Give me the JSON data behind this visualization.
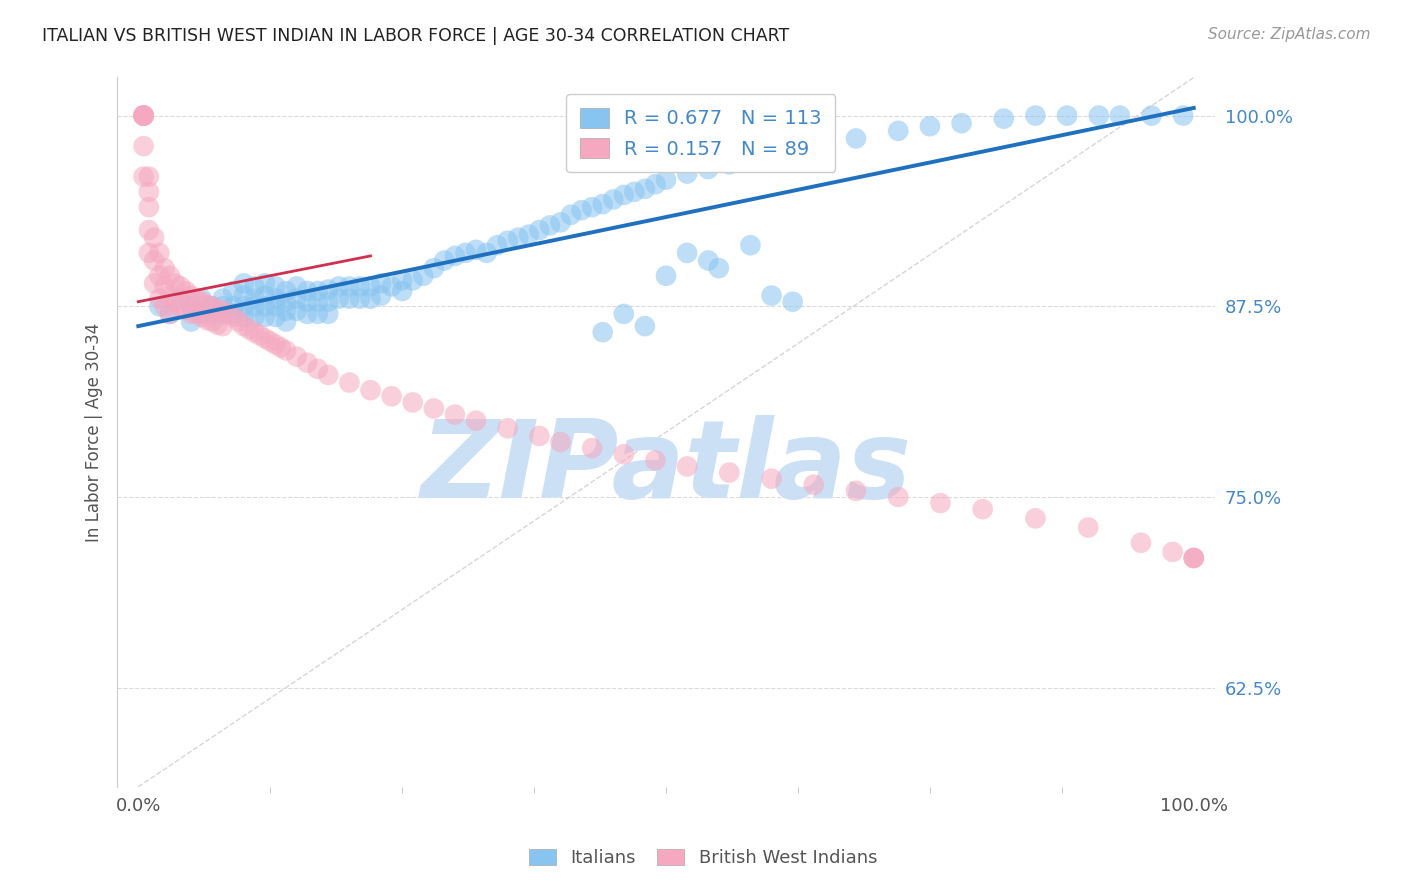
{
  "title": "ITALIAN VS BRITISH WEST INDIAN IN LABOR FORCE | AGE 30-34 CORRELATION CHART",
  "source": "Source: ZipAtlas.com",
  "ylabel": "In Labor Force | Age 30-34",
  "xlim": [
    -0.02,
    1.02
  ],
  "ylim": [
    0.56,
    1.025
  ],
  "yticks": [
    0.625,
    0.75,
    0.875,
    1.0
  ],
  "ytick_labels": [
    "62.5%",
    "75.0%",
    "87.5%",
    "100.0%"
  ],
  "xtick_labels": [
    "0.0%",
    "100.0%"
  ],
  "blue_R": 0.677,
  "blue_N": 113,
  "pink_R": 0.157,
  "pink_N": 89,
  "blue_color": "#88c4f0",
  "pink_color": "#f5a8c0",
  "trend_blue": "#2070c0",
  "trend_pink": "#d03050",
  "diagonal_color": "#cccccc",
  "grid_color": "#d8d8d8",
  "title_color": "#222222",
  "source_color": "#999999",
  "label_color": "#555555",
  "tick_color": "#4488cc",
  "watermark_color": "#cce0f5",
  "blue_scatter_x": [
    0.02,
    0.03,
    0.04,
    0.05,
    0.05,
    0.06,
    0.06,
    0.07,
    0.07,
    0.08,
    0.08,
    0.08,
    0.09,
    0.09,
    0.09,
    0.1,
    0.1,
    0.1,
    0.1,
    0.11,
    0.11,
    0.11,
    0.11,
    0.12,
    0.12,
    0.12,
    0.12,
    0.13,
    0.13,
    0.13,
    0.13,
    0.14,
    0.14,
    0.14,
    0.14,
    0.15,
    0.15,
    0.15,
    0.16,
    0.16,
    0.16,
    0.17,
    0.17,
    0.17,
    0.18,
    0.18,
    0.18,
    0.19,
    0.19,
    0.2,
    0.2,
    0.21,
    0.21,
    0.22,
    0.22,
    0.23,
    0.23,
    0.24,
    0.25,
    0.25,
    0.26,
    0.27,
    0.28,
    0.29,
    0.3,
    0.31,
    0.32,
    0.33,
    0.34,
    0.35,
    0.36,
    0.37,
    0.38,
    0.39,
    0.4,
    0.41,
    0.42,
    0.43,
    0.44,
    0.45,
    0.46,
    0.47,
    0.48,
    0.49,
    0.5,
    0.52,
    0.54,
    0.56,
    0.58,
    0.6,
    0.63,
    0.65,
    0.68,
    0.72,
    0.75,
    0.78,
    0.82,
    0.85,
    0.88,
    0.91,
    0.93,
    0.96,
    0.99,
    0.48,
    0.62,
    0.55,
    0.5,
    0.52,
    0.54,
    0.58,
    0.44,
    0.46,
    0.6
  ],
  "blue_scatter_y": [
    0.875,
    0.87,
    0.88,
    0.875,
    0.865,
    0.87,
    0.88,
    0.875,
    0.87,
    0.88,
    0.875,
    0.87,
    0.885,
    0.875,
    0.87,
    0.89,
    0.882,
    0.875,
    0.868,
    0.888,
    0.88,
    0.875,
    0.868,
    0.89,
    0.882,
    0.875,
    0.868,
    0.888,
    0.88,
    0.875,
    0.868,
    0.885,
    0.878,
    0.872,
    0.865,
    0.888,
    0.88,
    0.872,
    0.885,
    0.878,
    0.87,
    0.885,
    0.878,
    0.87,
    0.886,
    0.878,
    0.87,
    0.888,
    0.88,
    0.888,
    0.88,
    0.888,
    0.88,
    0.888,
    0.88,
    0.89,
    0.882,
    0.888,
    0.892,
    0.885,
    0.892,
    0.895,
    0.9,
    0.905,
    0.908,
    0.91,
    0.912,
    0.91,
    0.915,
    0.918,
    0.92,
    0.922,
    0.925,
    0.928,
    0.93,
    0.935,
    0.938,
    0.94,
    0.942,
    0.945,
    0.948,
    0.95,
    0.952,
    0.955,
    0.958,
    0.962,
    0.965,
    0.968,
    0.972,
    0.975,
    0.98,
    0.982,
    0.985,
    0.99,
    0.993,
    0.995,
    0.998,
    1.0,
    1.0,
    1.0,
    1.0,
    1.0,
    1.0,
    0.862,
    0.878,
    0.9,
    0.895,
    0.91,
    0.905,
    0.915,
    0.858,
    0.87,
    0.882
  ],
  "pink_scatter_x": [
    0.005,
    0.005,
    0.005,
    0.005,
    0.005,
    0.005,
    0.005,
    0.005,
    0.01,
    0.01,
    0.01,
    0.01,
    0.01,
    0.015,
    0.015,
    0.015,
    0.02,
    0.02,
    0.02,
    0.025,
    0.025,
    0.025,
    0.03,
    0.03,
    0.03,
    0.035,
    0.035,
    0.04,
    0.04,
    0.045,
    0.045,
    0.05,
    0.05,
    0.055,
    0.055,
    0.06,
    0.06,
    0.065,
    0.065,
    0.07,
    0.07,
    0.075,
    0.075,
    0.08,
    0.08,
    0.085,
    0.09,
    0.095,
    0.1,
    0.105,
    0.11,
    0.115,
    0.12,
    0.125,
    0.13,
    0.135,
    0.14,
    0.15,
    0.16,
    0.17,
    0.18,
    0.2,
    0.22,
    0.24,
    0.26,
    0.28,
    0.3,
    0.32,
    0.35,
    0.38,
    0.4,
    0.43,
    0.46,
    0.49,
    0.52,
    0.56,
    0.6,
    0.64,
    0.68,
    0.72,
    0.76,
    0.8,
    0.85,
    0.9,
    0.95,
    0.98,
    1.0,
    1.0,
    1.0
  ],
  "pink_scatter_y": [
    1.0,
    1.0,
    1.0,
    1.0,
    1.0,
    1.0,
    0.98,
    0.96,
    0.96,
    0.95,
    0.94,
    0.925,
    0.91,
    0.92,
    0.905,
    0.89,
    0.91,
    0.895,
    0.88,
    0.9,
    0.888,
    0.875,
    0.895,
    0.882,
    0.87,
    0.89,
    0.878,
    0.888,
    0.875,
    0.885,
    0.873,
    0.882,
    0.87,
    0.88,
    0.87,
    0.878,
    0.868,
    0.876,
    0.866,
    0.875,
    0.865,
    0.873,
    0.863,
    0.872,
    0.862,
    0.87,
    0.868,
    0.865,
    0.862,
    0.86,
    0.858,
    0.856,
    0.854,
    0.852,
    0.85,
    0.848,
    0.846,
    0.842,
    0.838,
    0.834,
    0.83,
    0.825,
    0.82,
    0.816,
    0.812,
    0.808,
    0.804,
    0.8,
    0.795,
    0.79,
    0.786,
    0.782,
    0.778,
    0.774,
    0.77,
    0.766,
    0.762,
    0.758,
    0.754,
    0.75,
    0.746,
    0.742,
    0.736,
    0.73,
    0.72,
    0.714,
    0.71,
    0.71,
    0.71
  ],
  "blue_trend_x": [
    0.0,
    1.0
  ],
  "blue_trend_y": [
    0.862,
    1.005
  ],
  "pink_trend_x": [
    0.0,
    0.22
  ],
  "pink_trend_y": [
    0.878,
    0.908
  ]
}
